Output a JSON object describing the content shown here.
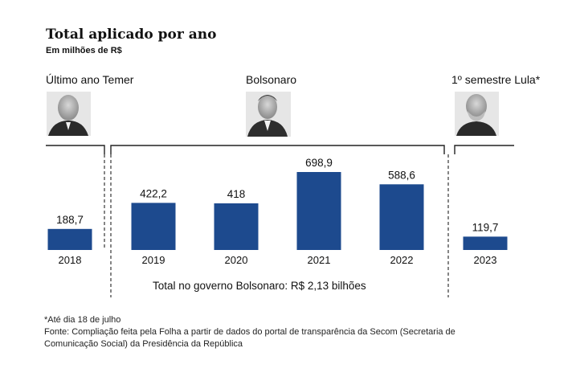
{
  "chart_data": {
    "type": "bar",
    "title": "Total aplicado por ano",
    "subtitle": "Em milhões de R$",
    "categories": [
      "2018",
      "2019",
      "2020",
      "2021",
      "2022",
      "2023"
    ],
    "values": [
      188.7,
      422.2,
      418,
      698.9,
      588.6,
      119.7
    ],
    "value_labels": [
      "188,7",
      "422,2",
      "418",
      "698,9",
      "588,6",
      "119,7"
    ],
    "bar_color": "#1d4a8e",
    "groups": [
      {
        "label": "Último ano Temer",
        "categories": [
          "2018"
        ]
      },
      {
        "label": "Bolsonaro",
        "categories": [
          "2019",
          "2020",
          "2021",
          "2022"
        ]
      },
      {
        "label": "1º semestre Lula*",
        "categories": [
          "2023"
        ]
      }
    ],
    "annotation": "Total no governo Bolsonaro: R$ 2,13 bilhões",
    "footnotes": [
      "*Até dia 18 de julho",
      "Fonte: Compliação feita pela Folha a partir de dados do portal de transparência da Secom (Secretaria de",
      "Comunicação Social) da Presidência da República"
    ]
  }
}
